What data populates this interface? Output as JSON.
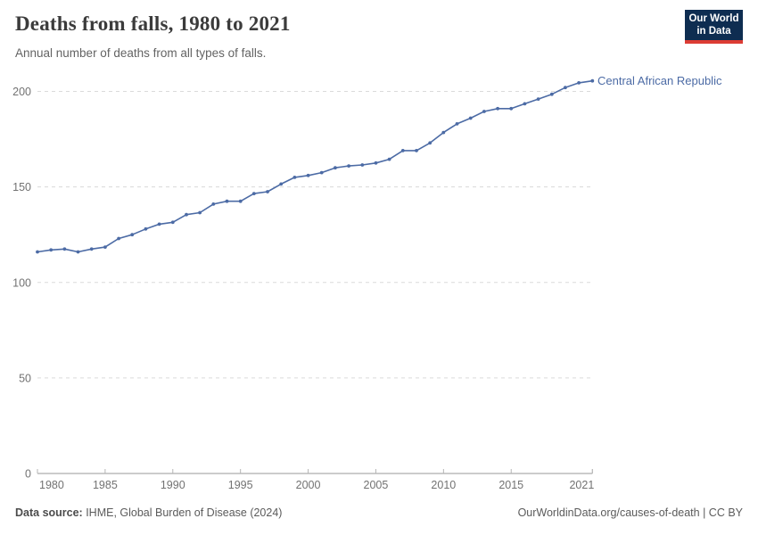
{
  "header": {
    "title": "Deaths from falls, 1980 to 2021",
    "subtitle": "Annual number of deaths from all types of falls.",
    "logo": {
      "line1": "Our World",
      "line2": "in Data",
      "bg_color": "#0e2d51",
      "accent_color": "#dc3c34"
    }
  },
  "chart_data": {
    "type": "line",
    "title": "Deaths from falls, 1980 to 2021",
    "xlabel": "",
    "ylabel": "",
    "xlim": [
      1980,
      2021
    ],
    "ylim": [
      0,
      208
    ],
    "x_ticks": [
      1980,
      1985,
      1990,
      1995,
      2000,
      2005,
      2010,
      2015,
      2021
    ],
    "y_ticks": [
      0,
      50,
      100,
      150,
      200
    ],
    "grid": "horizontal-dashed",
    "legend_position": "end-of-line-label",
    "series": [
      {
        "name": "Central African Republic",
        "color": "#4c6ba5",
        "x": [
          1980,
          1981,
          1982,
          1983,
          1984,
          1985,
          1986,
          1987,
          1988,
          1989,
          1990,
          1991,
          1992,
          1993,
          1994,
          1995,
          1996,
          1997,
          1998,
          1999,
          2000,
          2001,
          2002,
          2003,
          2004,
          2005,
          2006,
          2007,
          2008,
          2009,
          2010,
          2011,
          2012,
          2013,
          2014,
          2015,
          2016,
          2017,
          2018,
          2019,
          2020,
          2021
        ],
        "values": [
          116,
          117,
          117.5,
          116,
          117.5,
          118.5,
          123,
          125,
          128,
          130.5,
          131.5,
          135.5,
          136.5,
          141,
          142.5,
          142.5,
          146.5,
          147.5,
          151.5,
          155,
          156,
          157.5,
          160,
          161,
          161.5,
          162.5,
          164.5,
          169,
          169,
          173,
          178.5,
          183,
          186,
          189.5,
          191,
          191,
          193.5,
          196,
          198.5,
          202,
          204.5,
          205.5
        ]
      }
    ],
    "axis_colors": {
      "grid": "#dadada",
      "axis_line": "#999999",
      "tick_label": "#727272"
    }
  },
  "footer": {
    "source_label": "Data source:",
    "source_text": " IHME, Global Burden of Disease (2024)",
    "credit": "OurWorldinData.org/causes-of-death | CC BY"
  }
}
